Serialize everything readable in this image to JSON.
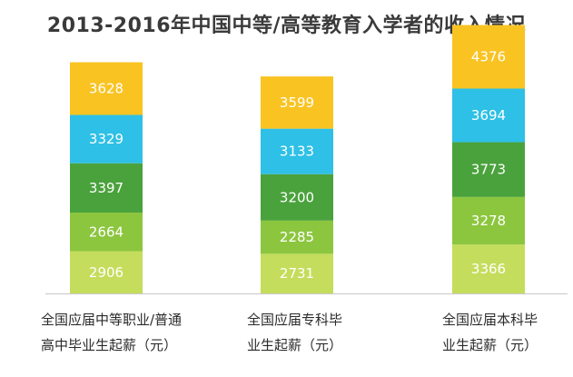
{
  "chart_data": {
    "type": "bar",
    "stacked": true,
    "title": "2013-2016年中国中等/高等教育入学者的收入情况",
    "categories": [
      "全国应届中等职业/普通高中毕业生起薪（元）",
      "全国应届专科毕业生起薪（元）",
      "全国应届本科毕业生起薪（元）"
    ],
    "category_lines": [
      [
        "全国应届中等职业/普通",
        "高中毕业生起薪（元）"
      ],
      [
        "全国应届专科毕",
        "业生起薪（元）"
      ],
      [
        "全国应届本科毕",
        "业生起薪（元）"
      ]
    ],
    "series": [
      {
        "values": [
          2906,
          2731,
          3366
        ],
        "color": "#c4dd5c"
      },
      {
        "values": [
          2664,
          2285,
          3278
        ],
        "color": "#8cc63f"
      },
      {
        "values": [
          3397,
          3200,
          3773
        ],
        "color": "#4aa23c"
      },
      {
        "values": [
          3329,
          3133,
          3694
        ],
        "color": "#2ec0e6"
      },
      {
        "values": [
          3628,
          3599,
          4376
        ],
        "color": "#f9c322"
      }
    ],
    "grid": false,
    "legend": "none"
  }
}
